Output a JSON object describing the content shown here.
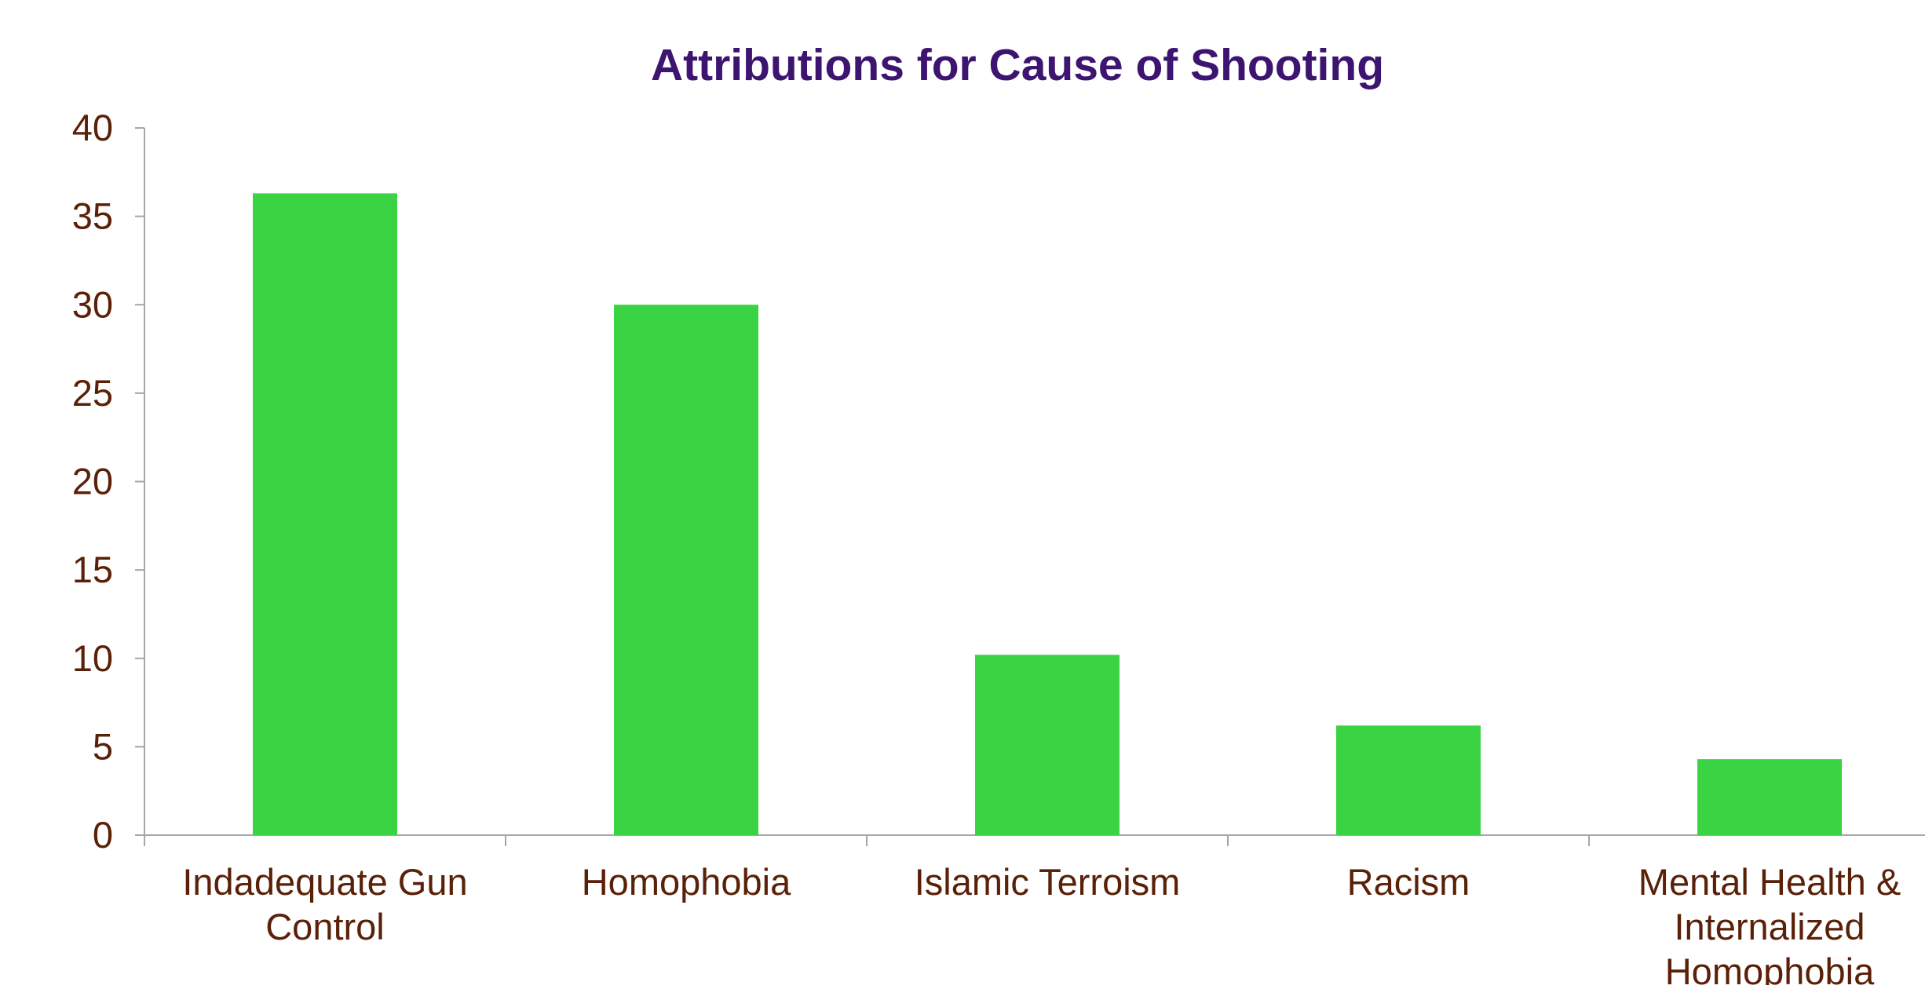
{
  "chart_data": {
    "type": "bar",
    "title": "Attributions for Cause of Shooting",
    "xlabel": "",
    "ylabel": "",
    "categories": [
      "Indadequate Gun Control",
      "Homophobia",
      "Islamic Terroism",
      "Racism",
      "Mental Health & Internalized Homophobia"
    ],
    "category_lines": [
      [
        "Indadequate Gun",
        "Control"
      ],
      [
        "Homophobia"
      ],
      [
        "Islamic Terroism"
      ],
      [
        "Racism"
      ],
      [
        "Mental Health &",
        "Internalized",
        "Homophobia"
      ]
    ],
    "values": [
      36.3,
      30.0,
      10.2,
      6.2,
      4.3
    ],
    "ylim": [
      0,
      40
    ],
    "yticks": [
      "0",
      "5",
      "10",
      "15",
      "20",
      "25",
      "30",
      "35",
      "40"
    ],
    "grid": false,
    "legend": "none"
  },
  "colors": {
    "bar": "#3ad344",
    "title": "#3d1470",
    "text": "#5a2008",
    "axis": "#a6a6a6"
  }
}
